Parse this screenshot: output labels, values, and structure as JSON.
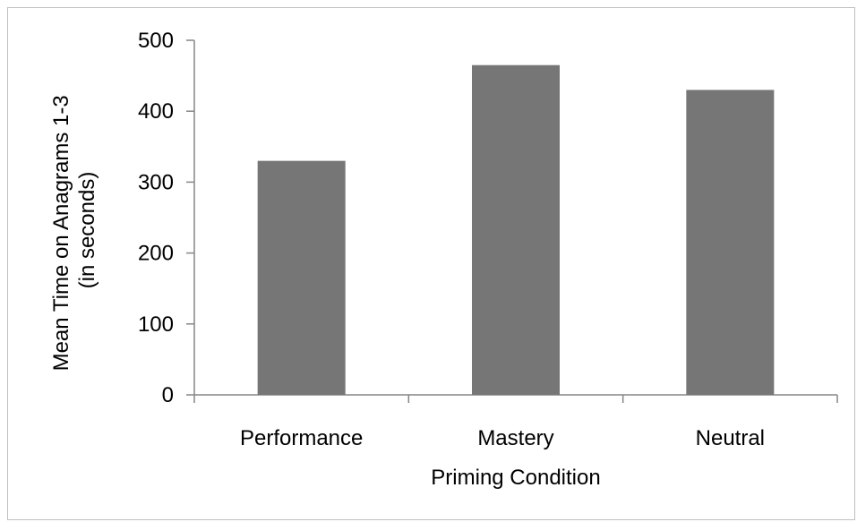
{
  "chart_data": {
    "type": "bar",
    "categories": [
      "Performance",
      "Mastery",
      "Neutral"
    ],
    "values": [
      330,
      465,
      430
    ],
    "xlabel": "Priming Condition",
    "ylabel_lines": [
      "Mean Time on Anagrams 1-3",
      "(in seconds)"
    ],
    "ylim": [
      0,
      500
    ],
    "yticks": [
      0,
      100,
      200,
      300,
      400,
      500
    ],
    "ytick_labels": [
      "0",
      "100",
      "200",
      "300",
      "400",
      "500"
    ],
    "grid": false,
    "bar_color": "#767676",
    "axis_color": "#868686"
  }
}
